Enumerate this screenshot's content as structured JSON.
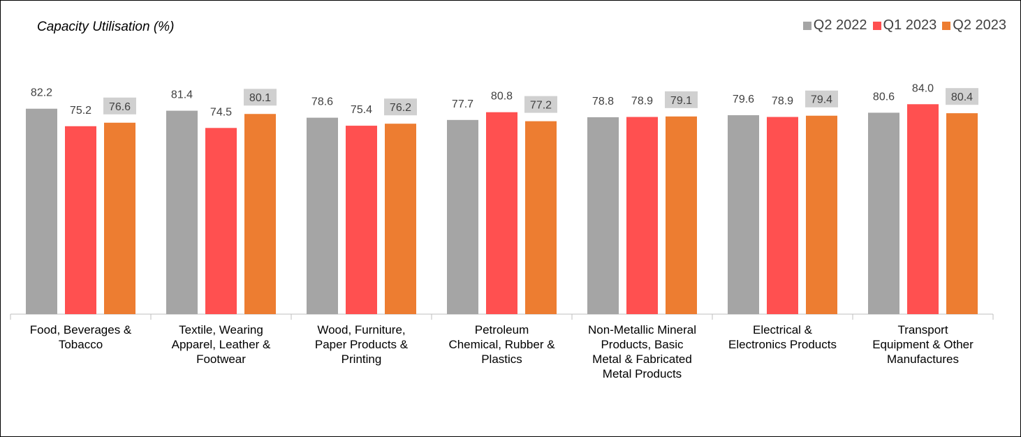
{
  "chart_data": {
    "type": "bar",
    "title": "Capacity Utilisation (%)",
    "categories": [
      [
        "Food, Beverages &",
        "Tobacco"
      ],
      [
        "Textile, Wearing",
        "Apparel, Leather &",
        "Footwear"
      ],
      [
        "Wood, Furniture,",
        "Paper Products &",
        "Printing"
      ],
      [
        "Petroleum",
        "Chemical, Rubber &",
        "Plastics"
      ],
      [
        "Non-Metallic Mineral",
        "Products, Basic",
        "Metal & Fabricated",
        "Metal Products"
      ],
      [
        "Electrical &",
        "Electronics Products"
      ],
      [
        "Transport",
        "Equipment & Other",
        "Manufactures"
      ]
    ],
    "series": [
      {
        "name": "Q2 2022",
        "color": "#A5A5A5",
        "values": [
          82.2,
          81.4,
          78.6,
          77.7,
          78.8,
          79.6,
          80.6
        ]
      },
      {
        "name": "Q1 2023",
        "color": "#FF5050",
        "values": [
          75.2,
          74.5,
          75.4,
          80.8,
          78.9,
          78.9,
          84.0
        ]
      },
      {
        "name": "Q2 2023",
        "color": "#ED7D31",
        "values": [
          76.6,
          80.1,
          76.2,
          77.2,
          79.1,
          79.4,
          80.4
        ]
      }
    ],
    "highlight_label_series": "Q2 2023",
    "label_highlight_color": "#D0D0D0",
    "legend_position": "top-right",
    "ylim": [
      0,
      100
    ],
    "grid": false,
    "xlabel": "",
    "ylabel": ""
  }
}
